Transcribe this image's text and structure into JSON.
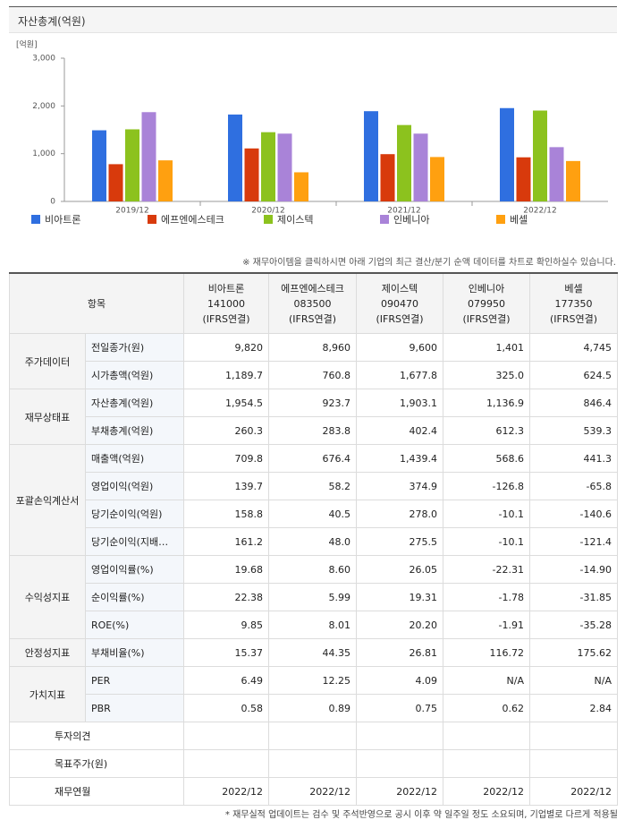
{
  "chart_data": {
    "type": "bar",
    "title": "자산총계(억원)",
    "ylabel": "[억원]",
    "categories": [
      "2019/12",
      "2020/12",
      "2021/12",
      "2022/12"
    ],
    "series": [
      {
        "name": "비아트론",
        "color": "#2f6fe0",
        "values": [
          1490,
          1820,
          1890,
          1954.5
        ]
      },
      {
        "name": "에프엔에스테크",
        "color": "#d83a0c",
        "values": [
          780,
          1110,
          990,
          923.7
        ]
      },
      {
        "name": "제이스텍",
        "color": "#8cc21e",
        "values": [
          1510,
          1450,
          1600,
          1903.1
        ]
      },
      {
        "name": "인베니아",
        "color": "#a983d8",
        "values": [
          1870,
          1420,
          1420,
          1136.9
        ]
      },
      {
        "name": "베셀",
        "color": "#ffa010",
        "values": [
          860,
          610,
          930,
          846.4
        ]
      }
    ],
    "ylim": [
      0,
      3000
    ],
    "yticks": [
      0,
      {
        "value": 1000,
        "label": "1,000"
      },
      {
        "value": 2000,
        "label": "2,000"
      },
      {
        "value": 3000,
        "label": "3,000"
      }
    ],
    "grid": false
  },
  "note": "※ 재무아이템을 클릭하시면 아래 기업의 최근 결산/분기 순액 데이터를 차트로 확인하실수 있습니다.",
  "table": {
    "header": "항목",
    "columns": [
      {
        "name": "비아트론",
        "code": "141000",
        "basis": "(IFRS연결)"
      },
      {
        "name": "에프엔에스테크",
        "code": "083500",
        "basis": "(IFRS연결)"
      },
      {
        "name": "제이스텍",
        "code": "090470",
        "basis": "(IFRS연결)"
      },
      {
        "name": "인베니아",
        "code": "079950",
        "basis": "(IFRS연결)"
      },
      {
        "name": "베셀",
        "code": "177350",
        "basis": "(IFRS연결)"
      }
    ],
    "groups": [
      {
        "label": "주가데이터",
        "rows": [
          {
            "item": "전일종가(원)",
            "values": [
              "9,820",
              "8,960",
              "9,600",
              "1,401",
              "4,745"
            ]
          },
          {
            "item": "시가총액(억원)",
            "values": [
              "1,189.7",
              "760.8",
              "1,677.8",
              "325.0",
              "624.5"
            ]
          }
        ]
      },
      {
        "label": "재무상태표",
        "rows": [
          {
            "item": "자산총계(억원)",
            "values": [
              "1,954.5",
              "923.7",
              "1,903.1",
              "1,136.9",
              "846.4"
            ]
          },
          {
            "item": "부채총계(억원)",
            "values": [
              "260.3",
              "283.8",
              "402.4",
              "612.3",
              "539.3"
            ]
          }
        ]
      },
      {
        "label": "포괄손익계산서",
        "rows": [
          {
            "item": "매출액(억원)",
            "values": [
              "709.8",
              "676.4",
              "1,439.4",
              "568.6",
              "441.3"
            ]
          },
          {
            "item": "영업이익(억원)",
            "values": [
              "139.7",
              "58.2",
              "374.9",
              "-126.8",
              "-65.8"
            ]
          },
          {
            "item": "당기순이익(억원)",
            "values": [
              "158.8",
              "40.5",
              "278.0",
              "-10.1",
              "-140.6"
            ]
          },
          {
            "item": "당기순이익(지배…",
            "values": [
              "161.2",
              "48.0",
              "275.5",
              "-10.1",
              "-121.4"
            ]
          }
        ]
      },
      {
        "label": "수익성지표",
        "rows": [
          {
            "item": "영업이익률(%)",
            "values": [
              "19.68",
              "8.60",
              "26.05",
              "-22.31",
              "-14.90"
            ]
          },
          {
            "item": "순이익률(%)",
            "values": [
              "22.38",
              "5.99",
              "19.31",
              "-1.78",
              "-31.85"
            ]
          },
          {
            "item": "ROE(%)",
            "values": [
              "9.85",
              "8.01",
              "20.20",
              "-1.91",
              "-35.28"
            ]
          }
        ]
      },
      {
        "label": "안정성지표",
        "rows": [
          {
            "item": "부채비율(%)",
            "values": [
              "15.37",
              "44.35",
              "26.81",
              "116.72",
              "175.62"
            ]
          }
        ]
      },
      {
        "label": "가치지표",
        "rows": [
          {
            "item": "PER",
            "values": [
              "6.49",
              "12.25",
              "4.09",
              "N/A",
              "N/A"
            ]
          },
          {
            "item": "PBR",
            "values": [
              "0.58",
              "0.89",
              "0.75",
              "0.62",
              "2.84"
            ]
          }
        ]
      }
    ],
    "extra_rows": [
      {
        "item": "투자의견"
      },
      {
        "item": "목표주가(원)"
      },
      {
        "item": "재무연월",
        "values": [
          "2022/12",
          "2022/12",
          "2022/12",
          "2022/12",
          "2022/12"
        ]
      }
    ]
  },
  "footnote": "* 재무실적 업데이트는 검수 및 주석반영으로 공시 이후 약 일주일 정도 소요되며, 기업별로 다르게 적용될"
}
